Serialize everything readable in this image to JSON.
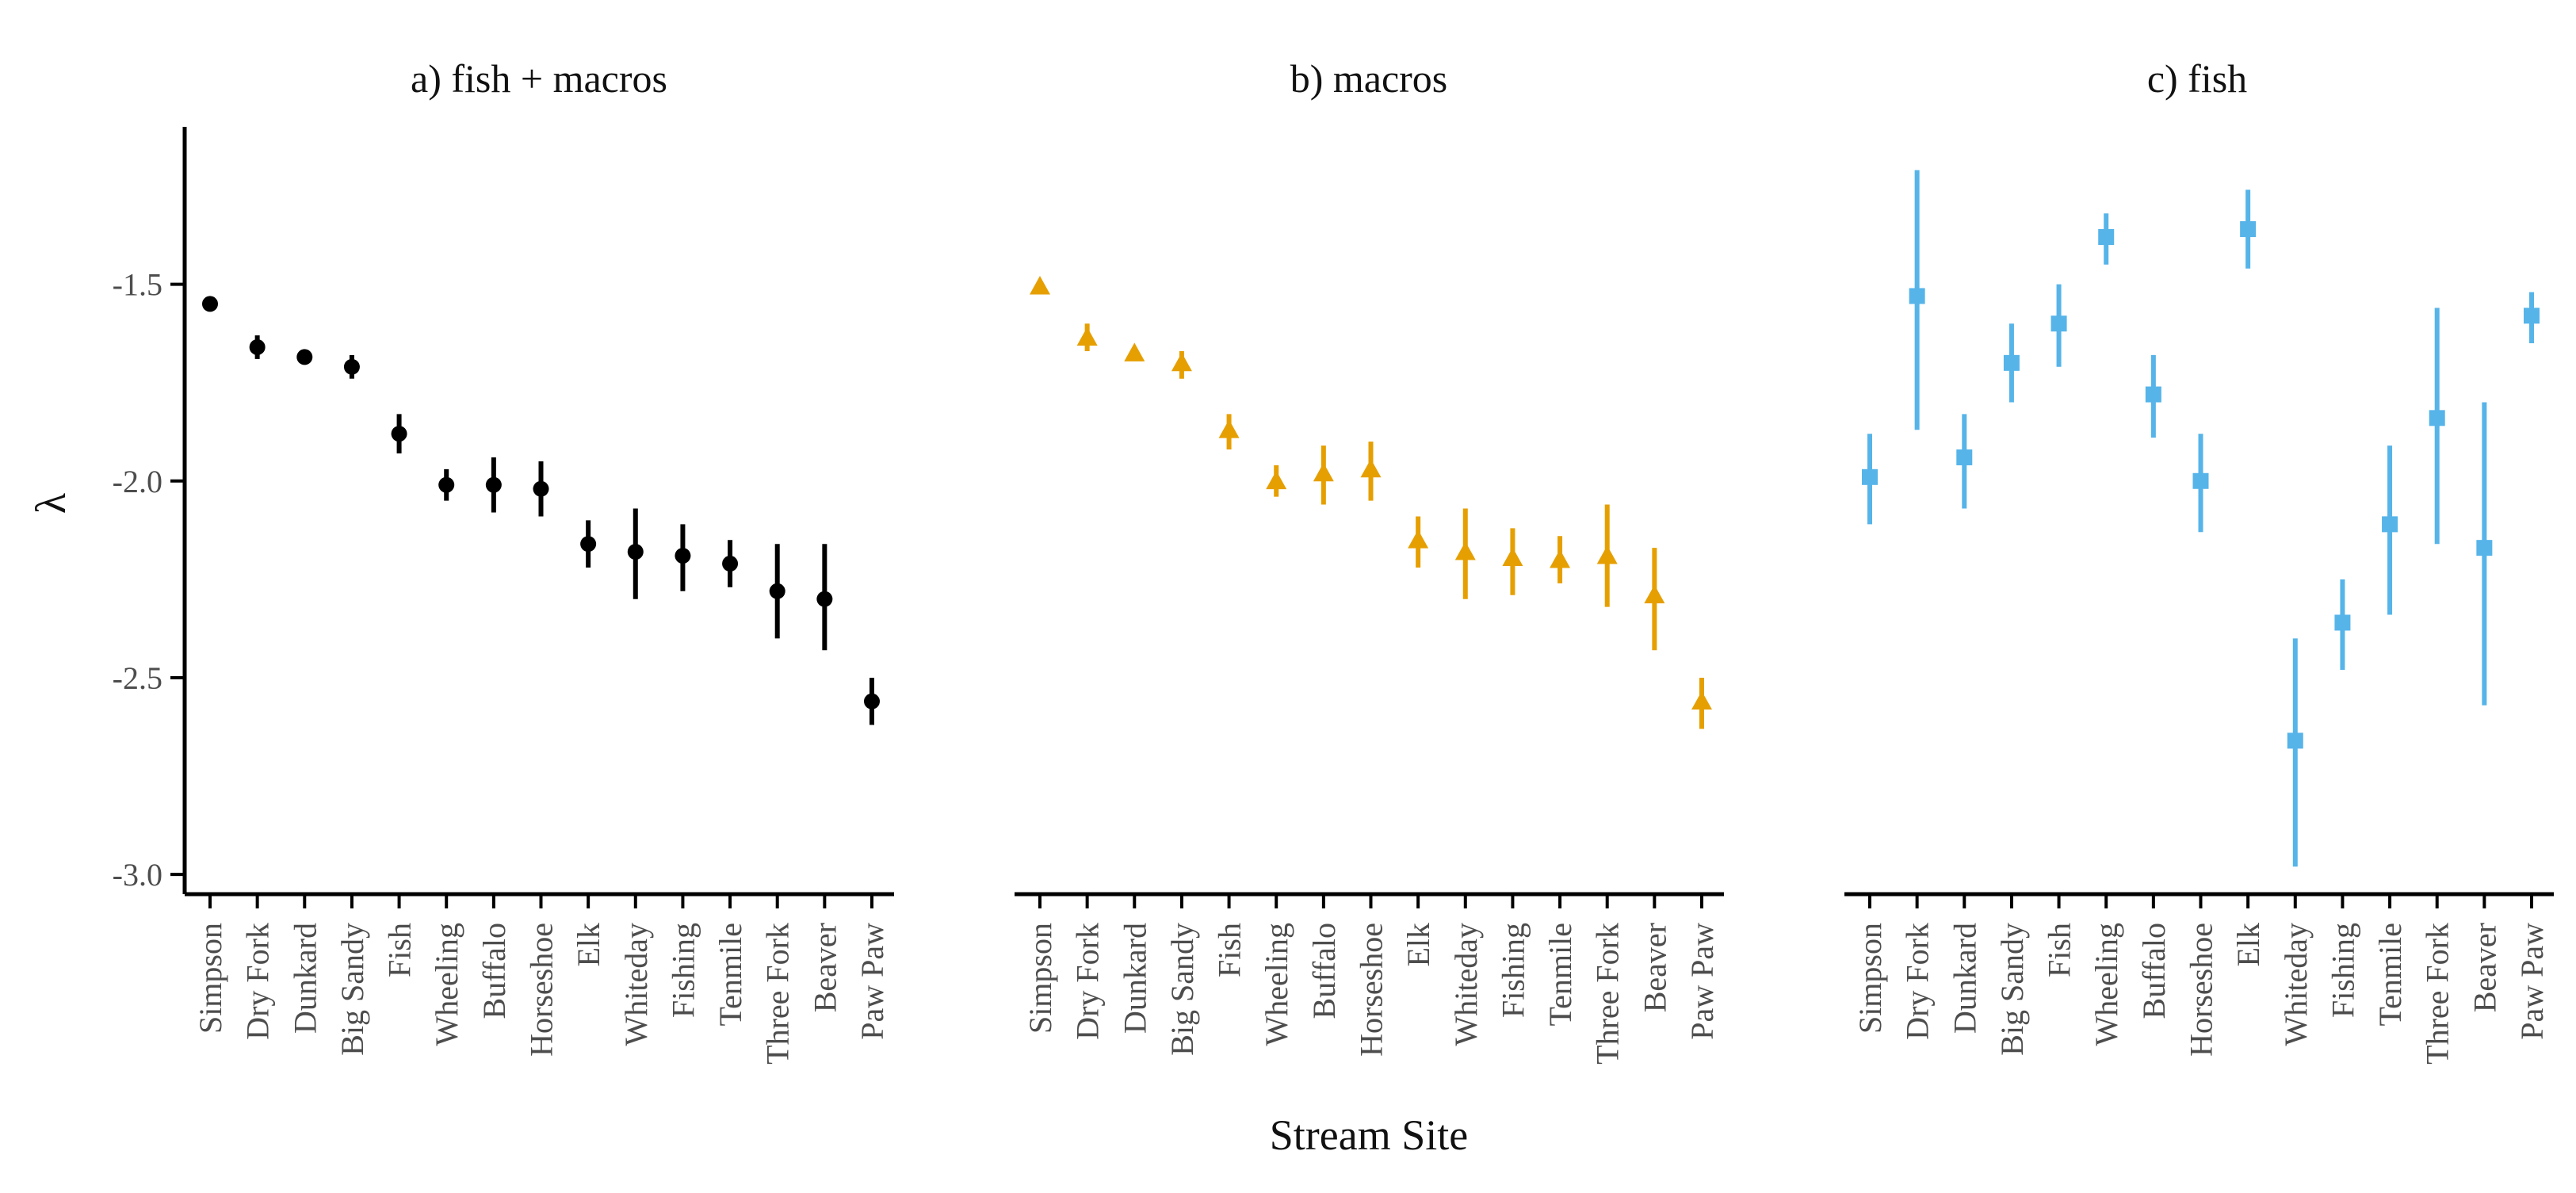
{
  "figure": {
    "xlabel": "Stream Site",
    "ylabel": "λ"
  },
  "colors": {
    "axis": "#000000",
    "panel_a": "#000000",
    "panel_b": "#E69F00",
    "panel_c": "#56B4E9"
  },
  "chart_data": [
    {
      "type": "scatter",
      "title": "a) fish + macros",
      "xlabel": "Stream Site",
      "ylabel": "λ",
      "ylim": [
        -3.05,
        -1.1
      ],
      "yticks": [
        -1.5,
        -2.0,
        -2.5,
        -3.0
      ],
      "ytick_labels": [
        "-1.5",
        "-2.0",
        "-2.5",
        "-3.0"
      ],
      "marker": "circle",
      "color": "#000000",
      "grid": false,
      "categories": [
        "Simpson",
        "Dry Fork",
        "Dunkard",
        "Big Sandy",
        "Fish",
        "Wheeling",
        "Buffalo",
        "Horseshoe",
        "Elk",
        "Whiteday",
        "Fishing",
        "Tenmile",
        "Three Fork",
        "Beaver",
        "Paw Paw"
      ],
      "values": [
        -1.55,
        -1.66,
        -1.685,
        -1.71,
        -1.88,
        -2.01,
        -2.01,
        -2.02,
        -2.16,
        -2.18,
        -2.19,
        -2.21,
        -2.28,
        -2.3,
        -2.56
      ],
      "lower": [
        -1.56,
        -1.69,
        -1.695,
        -1.74,
        -1.93,
        -2.05,
        -2.08,
        -2.09,
        -2.22,
        -2.3,
        -2.28,
        -2.27,
        -2.4,
        -2.43,
        -2.62
      ],
      "upper": [
        -1.54,
        -1.63,
        -1.675,
        -1.68,
        -1.83,
        -1.97,
        -1.94,
        -1.95,
        -2.1,
        -2.07,
        -2.11,
        -2.15,
        -2.16,
        -2.16,
        -2.5
      ]
    },
    {
      "type": "scatter",
      "title": "b) macros",
      "xlabel": "Stream Site",
      "ylabel": "λ",
      "ylim": [
        -3.05,
        -1.1
      ],
      "marker": "triangle",
      "color": "#E69F00",
      "grid": false,
      "categories": [
        "Simpson",
        "Dry Fork",
        "Dunkard",
        "Big Sandy",
        "Fish",
        "Wheeling",
        "Buffalo",
        "Horseshoe",
        "Elk",
        "Whiteday",
        "Fishing",
        "Tenmile",
        "Three Fork",
        "Beaver",
        "Paw Paw"
      ],
      "values": [
        -1.505,
        -1.635,
        -1.675,
        -1.7,
        -1.87,
        -2.0,
        -1.98,
        -1.97,
        -2.15,
        -2.18,
        -2.195,
        -2.2,
        -2.19,
        -2.29,
        -2.56
      ],
      "lower": [
        -1.52,
        -1.67,
        -1.69,
        -1.74,
        -1.92,
        -2.04,
        -2.06,
        -2.05,
        -2.22,
        -2.3,
        -2.29,
        -2.26,
        -2.32,
        -2.43,
        -2.63
      ],
      "upper": [
        -1.49,
        -1.6,
        -1.66,
        -1.67,
        -1.83,
        -1.96,
        -1.91,
        -1.9,
        -2.09,
        -2.07,
        -2.12,
        -2.14,
        -2.06,
        -2.17,
        -2.5
      ]
    },
    {
      "type": "scatter",
      "title": "c) fish",
      "xlabel": "Stream Site",
      "ylabel": "λ",
      "ylim": [
        -3.05,
        -1.1
      ],
      "marker": "square",
      "color": "#56B4E9",
      "grid": false,
      "categories": [
        "Simpson",
        "Dry Fork",
        "Dunkard",
        "Big Sandy",
        "Fish",
        "Wheeling",
        "Buffalo",
        "Horseshoe",
        "Elk",
        "Whiteday",
        "Fishing",
        "Tenmile",
        "Three Fork",
        "Beaver",
        "Paw Paw"
      ],
      "values": [
        -1.99,
        -1.53,
        -1.94,
        -1.7,
        -1.6,
        -1.38,
        -1.78,
        -2.0,
        -1.36,
        -2.66,
        -2.36,
        -2.11,
        -1.84,
        -2.17,
        -1.58
      ],
      "lower": [
        -2.11,
        -1.87,
        -2.07,
        -1.8,
        -1.71,
        -1.45,
        -1.89,
        -2.13,
        -1.46,
        -2.98,
        -2.48,
        -2.34,
        -2.16,
        -2.57,
        -1.65
      ],
      "upper": [
        -1.88,
        -1.21,
        -1.83,
        -1.6,
        -1.5,
        -1.32,
        -1.68,
        -1.88,
        -1.26,
        -2.4,
        -2.25,
        -1.91,
        -1.56,
        -1.8,
        -1.52
      ]
    }
  ]
}
